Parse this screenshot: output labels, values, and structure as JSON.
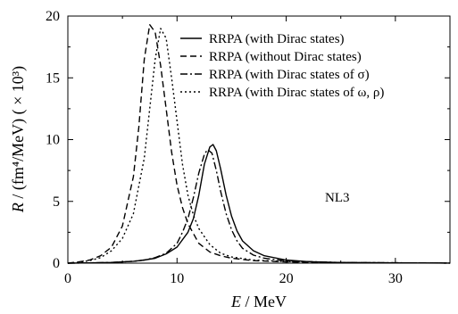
{
  "chart_data": {
    "type": "line",
    "xlabel": "E / MeV",
    "ylabel": "R / (fm⁴/MeV) ( × 10³)",
    "xlim": [
      0,
      35
    ],
    "ylim": [
      0,
      20
    ],
    "xticks": [
      0,
      10,
      20,
      30
    ],
    "yticks": [
      0,
      5,
      10,
      15,
      20
    ],
    "grid": false,
    "legend_position": "top-right",
    "annotation": "NL3",
    "series": [
      {
        "name": "RRPA (with Dirac states)",
        "style": "solid",
        "points": [
          [
            0,
            0
          ],
          [
            2,
            0.02
          ],
          [
            4,
            0.06
          ],
          [
            6,
            0.15
          ],
          [
            7,
            0.25
          ],
          [
            8,
            0.4
          ],
          [
            9,
            0.75
          ],
          [
            10,
            1.3
          ],
          [
            11,
            2.5
          ],
          [
            11.5,
            3.6
          ],
          [
            12,
            5.5
          ],
          [
            12.5,
            8.0
          ],
          [
            13,
            9.4
          ],
          [
            13.3,
            9.6
          ],
          [
            13.6,
            9.1
          ],
          [
            14,
            7.6
          ],
          [
            14.5,
            5.5
          ],
          [
            15,
            3.8
          ],
          [
            15.5,
            2.6
          ],
          [
            16,
            1.8
          ],
          [
            17,
            1.0
          ],
          [
            18,
            0.6
          ],
          [
            20,
            0.25
          ],
          [
            22,
            0.12
          ],
          [
            25,
            0.05
          ],
          [
            30,
            0.02
          ],
          [
            35,
            0.01
          ]
        ]
      },
      {
        "name": "RRPA (without Dirac states)",
        "style": "dashed",
        "points": [
          [
            0,
            0
          ],
          [
            1,
            0.1
          ],
          [
            2,
            0.25
          ],
          [
            3,
            0.6
          ],
          [
            4,
            1.3
          ],
          [
            5,
            3.0
          ],
          [
            6,
            7.0
          ],
          [
            6.5,
            11.0
          ],
          [
            7,
            16.5
          ],
          [
            7.5,
            19.3
          ],
          [
            8,
            18.7
          ],
          [
            8.5,
            16.0
          ],
          [
            9,
            12.5
          ],
          [
            9.5,
            9.0
          ],
          [
            10,
            6.3
          ],
          [
            10.5,
            4.5
          ],
          [
            11,
            3.2
          ],
          [
            12,
            1.6
          ],
          [
            13,
            0.9
          ],
          [
            14,
            0.6
          ],
          [
            15,
            0.4
          ],
          [
            17,
            0.2
          ],
          [
            20,
            0.1
          ],
          [
            25,
            0.04
          ],
          [
            35,
            0.01
          ]
        ]
      },
      {
        "name": "RRPA (with Dirac states of σ)",
        "style": "dashdot",
        "points": [
          [
            0,
            0
          ],
          [
            2,
            0.02
          ],
          [
            4,
            0.06
          ],
          [
            6,
            0.15
          ],
          [
            7,
            0.25
          ],
          [
            8,
            0.45
          ],
          [
            9,
            0.8
          ],
          [
            10,
            1.6
          ],
          [
            10.5,
            2.5
          ],
          [
            11,
            3.6
          ],
          [
            11.5,
            5.3
          ],
          [
            12,
            7.3
          ],
          [
            12.5,
            8.8
          ],
          [
            12.8,
            9.2
          ],
          [
            13.2,
            8.9
          ],
          [
            13.6,
            7.5
          ],
          [
            14,
            5.8
          ],
          [
            14.5,
            4.0
          ],
          [
            15,
            2.7
          ],
          [
            15.5,
            1.8
          ],
          [
            16,
            1.2
          ],
          [
            17,
            0.65
          ],
          [
            18,
            0.4
          ],
          [
            20,
            0.18
          ],
          [
            25,
            0.05
          ],
          [
            35,
            0.01
          ]
        ]
      },
      {
        "name": "RRPA (with Dirac states of ω, ρ)",
        "style": "dotted",
        "points": [
          [
            0,
            0
          ],
          [
            1,
            0.08
          ],
          [
            2,
            0.2
          ],
          [
            3,
            0.45
          ],
          [
            4,
            1.0
          ],
          [
            5,
            2.0
          ],
          [
            6,
            4.0
          ],
          [
            7,
            8.5
          ],
          [
            7.5,
            12.5
          ],
          [
            8,
            16.5
          ],
          [
            8.5,
            19.0
          ],
          [
            9,
            18.2
          ],
          [
            9.5,
            15.0
          ],
          [
            10,
            11.5
          ],
          [
            10.5,
            8.0
          ],
          [
            11,
            5.5
          ],
          [
            11.5,
            3.9
          ],
          [
            12,
            2.8
          ],
          [
            13,
            1.5
          ],
          [
            14,
            0.8
          ],
          [
            15,
            0.5
          ],
          [
            17,
            0.25
          ],
          [
            20,
            0.12
          ],
          [
            25,
            0.05
          ],
          [
            35,
            0.01
          ]
        ]
      }
    ]
  }
}
